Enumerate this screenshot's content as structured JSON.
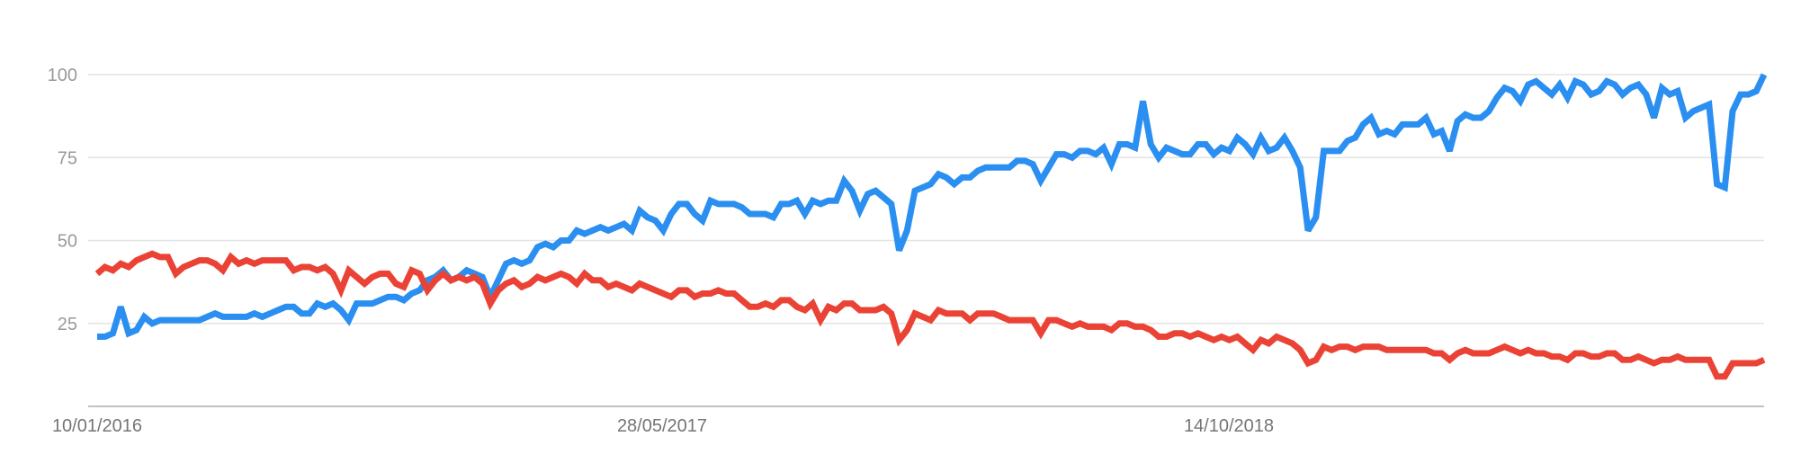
{
  "chart_data": {
    "type": "line",
    "title": "",
    "xlabel": "",
    "ylabel": "",
    "ylim": [
      0,
      100
    ],
    "y_ticks": [
      "25",
      "50",
      "75",
      "100"
    ],
    "x_tick_labels": [
      "10/01/2016",
      "28/05/2017",
      "14/10/2018"
    ],
    "grid": true,
    "legend": "none",
    "colors": {
      "blue": "#2a8ff0",
      "red": "#ea4335",
      "grid": "#e3e3e3",
      "axis": "#c2c2c2",
      "tick_text": "#9a9a9a",
      "date_text": "#757575"
    },
    "series": [
      {
        "color": "blue",
        "values": [
          21,
          21,
          22,
          30,
          22,
          23,
          27,
          25,
          26,
          26,
          26,
          26,
          26,
          26,
          27,
          28,
          27,
          27,
          27,
          27,
          28,
          27,
          28,
          29,
          30,
          30,
          28,
          28,
          31,
          30,
          31,
          29,
          26,
          31,
          31,
          31,
          32,
          33,
          33,
          32,
          34,
          35,
          38,
          39,
          41,
          38,
          39,
          41,
          40,
          39,
          33,
          38,
          43,
          44,
          43,
          44,
          48,
          49,
          48,
          50,
          50,
          53,
          52,
          53,
          54,
          53,
          54,
          55,
          53,
          59,
          57,
          56,
          53,
          58,
          61,
          61,
          58,
          56,
          62,
          61,
          61,
          61,
          60,
          58,
          58,
          58,
          57,
          61,
          61,
          62,
          58,
          62,
          61,
          62,
          62,
          68,
          65,
          59,
          64,
          65,
          63,
          61,
          47,
          53,
          65,
          66,
          67,
          70,
          69,
          67,
          69,
          69,
          71,
          72,
          72,
          72,
          72,
          74,
          74,
          73,
          68,
          72,
          76,
          76,
          75,
          77,
          77,
          76,
          78,
          73,
          79,
          79,
          78,
          92,
          79,
          75,
          78,
          77,
          76,
          76,
          79,
          79,
          76,
          78,
          77,
          81,
          79,
          76,
          81,
          77,
          78,
          81,
          77,
          72,
          53,
          57,
          77,
          77,
          77,
          80,
          81,
          85,
          87,
          82,
          83,
          82,
          85,
          85,
          85,
          87,
          82,
          83,
          77,
          86,
          88,
          87,
          87,
          89,
          93,
          96,
          95,
          92,
          97,
          98,
          96,
          94,
          97,
          93,
          98,
          97,
          94,
          95,
          98,
          97,
          94,
          96,
          97,
          94,
          87,
          96,
          94,
          95,
          87,
          89,
          90,
          91,
          67,
          66,
          89,
          94,
          94,
          95,
          100
        ]
      },
      {
        "color": "red",
        "values": [
          40,
          42,
          41,
          43,
          42,
          44,
          45,
          46,
          45,
          45,
          40,
          42,
          43,
          44,
          44,
          43,
          41,
          45,
          43,
          44,
          43,
          44,
          44,
          44,
          44,
          41,
          42,
          42,
          41,
          42,
          40,
          35,
          41,
          39,
          37,
          39,
          40,
          40,
          37,
          36,
          41,
          40,
          35,
          38,
          40,
          38,
          39,
          38,
          39,
          37,
          31,
          35,
          37,
          38,
          36,
          37,
          39,
          38,
          39,
          40,
          39,
          37,
          40,
          38,
          38,
          36,
          37,
          36,
          35,
          37,
          36,
          35,
          34,
          33,
          35,
          35,
          33,
          34,
          34,
          35,
          34,
          34,
          32,
          30,
          30,
          31,
          30,
          32,
          32,
          30,
          29,
          31,
          26,
          30,
          29,
          31,
          31,
          29,
          29,
          29,
          30,
          28,
          20,
          23,
          28,
          27,
          26,
          29,
          28,
          28,
          28,
          26,
          28,
          28,
          28,
          27,
          26,
          26,
          26,
          26,
          22,
          26,
          26,
          25,
          24,
          25,
          24,
          24,
          24,
          23,
          25,
          25,
          24,
          24,
          23,
          21,
          21,
          22,
          22,
          21,
          22,
          21,
          20,
          21,
          20,
          21,
          19,
          17,
          20,
          19,
          21,
          20,
          19,
          17,
          13,
          14,
          18,
          17,
          18,
          18,
          17,
          18,
          18,
          18,
          17,
          17,
          17,
          17,
          17,
          17,
          16,
          16,
          14,
          16,
          17,
          16,
          16,
          16,
          17,
          18,
          17,
          16,
          17,
          16,
          16,
          15,
          15,
          14,
          16,
          16,
          15,
          15,
          16,
          16,
          14,
          14,
          15,
          14,
          13,
          14,
          14,
          15,
          14,
          14,
          14,
          14,
          9,
          9,
          13,
          13,
          13,
          13,
          14
        ]
      }
    ]
  }
}
